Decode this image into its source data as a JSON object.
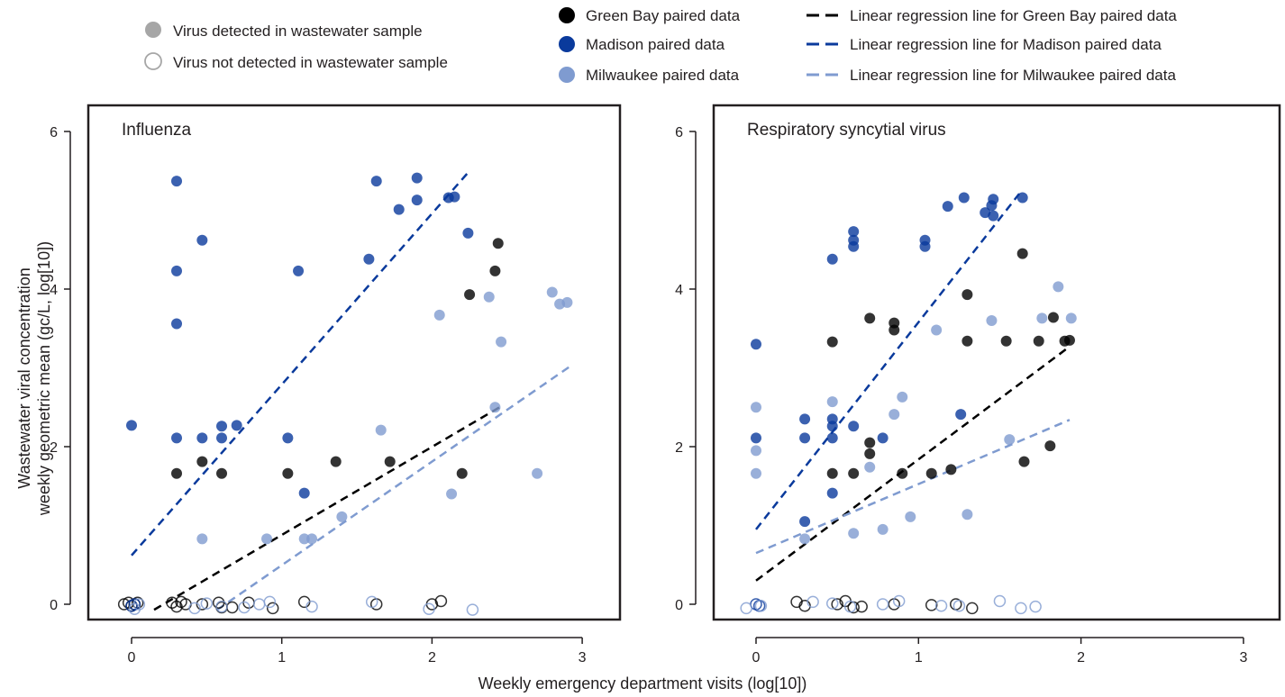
{
  "legend": {
    "detected": "Virus detected in wastewater sample",
    "not_detected": "Virus not detected in wastewater sample",
    "series_labels": [
      "Green Bay paired data",
      "Madison paired data",
      "Milwaukee paired data"
    ],
    "regression_labels": [
      "Linear regression line for Green Bay paired data",
      "Linear regression line for Madison paired data",
      "Linear regression line for Milwaukee paired data"
    ]
  },
  "colors": {
    "green_bay": "#000000",
    "madison": "#0a3a9c",
    "milwaukee": "#7f9bd0",
    "axis": "#231f20"
  },
  "shared_xlabel": "Weekly emergency department visits (log[10])",
  "shared_ylabel_line1": "Wastewater viral concentration",
  "shared_ylabel_line2": "weekly geometric mean (gc/L, log[10])",
  "chart_data": [
    {
      "type": "scatter",
      "title": "Influenza",
      "xlabel": "Weekly emergency department visits (log[10])",
      "ylabel": "Wastewater viral concentration weekly geometric mean (gc/L, log[10])",
      "xlim": [
        -0.2,
        3.25
      ],
      "ylim": [
        -0.2,
        6.2
      ],
      "xticks": [
        0,
        1,
        2,
        3
      ],
      "yticks": [
        0,
        2,
        4,
        6
      ],
      "series": [
        {
          "name": "Green Bay paired data",
          "color": "#000000",
          "detected": [
            [
              0.3,
              1.66
            ],
            [
              0.47,
              1.81
            ],
            [
              0.6,
              1.66
            ],
            [
              1.04,
              1.66
            ],
            [
              1.36,
              1.81
            ],
            [
              1.72,
              1.81
            ],
            [
              2.2,
              1.66
            ],
            [
              2.25,
              3.93
            ],
            [
              2.42,
              4.23
            ],
            [
              2.44,
              4.58
            ]
          ],
          "not_detected": [
            [
              -0.05,
              0.0
            ],
            [
              -0.02,
              0.02
            ],
            [
              0.0,
              -0.02
            ],
            [
              0.02,
              0.0
            ],
            [
              0.04,
              0.02
            ],
            [
              0.27,
              0.02
            ],
            [
              0.3,
              -0.03
            ],
            [
              0.33,
              0.03
            ],
            [
              0.36,
              0.0
            ],
            [
              0.47,
              0.0
            ],
            [
              0.58,
              0.02
            ],
            [
              0.6,
              -0.04
            ],
            [
              0.67,
              -0.04
            ],
            [
              0.78,
              0.02
            ],
            [
              0.94,
              -0.05
            ],
            [
              1.15,
              0.03
            ],
            [
              1.63,
              0.0
            ],
            [
              2.0,
              0.0
            ],
            [
              2.06,
              0.04
            ]
          ],
          "regression": [
            [
              0.15,
              -0.07
            ],
            [
              2.45,
              2.5
            ]
          ]
        },
        {
          "name": "Madison paired data",
          "color": "#0a3a9c",
          "detected": [
            [
              0.0,
              2.27
            ],
            [
              0.3,
              5.37
            ],
            [
              0.3,
              4.23
            ],
            [
              0.3,
              3.56
            ],
            [
              0.3,
              2.11
            ],
            [
              0.47,
              4.62
            ],
            [
              0.47,
              2.11
            ],
            [
              0.6,
              2.26
            ],
            [
              0.6,
              2.11
            ],
            [
              0.7,
              2.27
            ],
            [
              1.04,
              2.11
            ],
            [
              1.11,
              4.23
            ],
            [
              1.15,
              1.41
            ],
            [
              1.58,
              4.38
            ],
            [
              1.63,
              5.37
            ],
            [
              1.78,
              5.01
            ],
            [
              1.9,
              5.41
            ],
            [
              1.9,
              5.13
            ],
            [
              2.11,
              5.16
            ],
            [
              2.15,
              5.17
            ],
            [
              2.24,
              4.71
            ]
          ],
          "not_detected": [
            [
              0.0,
              -0.02
            ],
            [
              0.02,
              0.0
            ]
          ],
          "regression": [
            [
              0.0,
              0.62
            ],
            [
              2.25,
              5.5
            ]
          ]
        },
        {
          "name": "Milwaukee paired data",
          "color": "#7f9bd0",
          "detected": [
            [
              0.47,
              0.83
            ],
            [
              0.9,
              0.83
            ],
            [
              1.15,
              0.83
            ],
            [
              1.2,
              0.83
            ],
            [
              1.4,
              1.11
            ],
            [
              1.66,
              2.21
            ],
            [
              2.05,
              3.67
            ],
            [
              2.13,
              1.4
            ],
            [
              2.38,
              3.9
            ],
            [
              2.42,
              2.5
            ],
            [
              2.46,
              3.33
            ],
            [
              2.7,
              1.66
            ],
            [
              2.8,
              3.96
            ],
            [
              2.85,
              3.81
            ],
            [
              2.9,
              3.83
            ]
          ],
          "not_detected": [
            [
              0.02,
              -0.06
            ],
            [
              0.05,
              0.0
            ],
            [
              0.42,
              -0.05
            ],
            [
              0.5,
              0.01
            ],
            [
              0.6,
              -0.03
            ],
            [
              0.75,
              -0.04
            ],
            [
              0.85,
              0.0
            ],
            [
              0.92,
              0.03
            ],
            [
              1.2,
              -0.03
            ],
            [
              1.6,
              0.03
            ],
            [
              1.98,
              -0.06
            ],
            [
              2.27,
              -0.07
            ]
          ],
          "regression": [
            [
              0.57,
              -0.07
            ],
            [
              2.92,
              3.02
            ]
          ]
        }
      ]
    },
    {
      "type": "scatter",
      "title": "Respiratory syncytial virus",
      "xlabel": "Weekly emergency department visits (log[10])",
      "ylabel": "Wastewater viral concentration weekly geometric mean (gc/L, log[10])",
      "xlim": [
        -0.25,
        3.25
      ],
      "ylim": [
        -0.2,
        6.2
      ],
      "xticks": [
        0,
        1,
        2,
        3
      ],
      "yticks": [
        0,
        2,
        4,
        6
      ],
      "series": [
        {
          "name": "Green Bay paired data",
          "color": "#000000",
          "detected": [
            [
              0.47,
              3.33
            ],
            [
              0.47,
              1.66
            ],
            [
              0.6,
              1.66
            ],
            [
              0.7,
              3.63
            ],
            [
              0.7,
              2.05
            ],
            [
              0.7,
              1.91
            ],
            [
              0.85,
              3.57
            ],
            [
              0.85,
              3.48
            ],
            [
              0.9,
              1.66
            ],
            [
              1.08,
              1.66
            ],
            [
              1.2,
              1.71
            ],
            [
              1.3,
              3.93
            ],
            [
              1.3,
              3.34
            ],
            [
              1.54,
              3.34
            ],
            [
              1.64,
              4.45
            ],
            [
              1.65,
              1.81
            ],
            [
              1.74,
              3.34
            ],
            [
              1.81,
              2.01
            ],
            [
              1.83,
              3.64
            ],
            [
              1.9,
              3.34
            ],
            [
              1.93,
              3.35
            ]
          ],
          "not_detected": [
            [
              0.25,
              0.03
            ],
            [
              0.3,
              -0.02
            ],
            [
              0.5,
              0.0
            ],
            [
              0.55,
              0.04
            ],
            [
              0.6,
              -0.04
            ],
            [
              0.65,
              -0.03
            ],
            [
              0.85,
              0.0
            ],
            [
              1.08,
              -0.01
            ],
            [
              1.23,
              0.0
            ],
            [
              1.33,
              -0.05
            ]
          ],
          "regression": [
            [
              0.0,
              0.3
            ],
            [
              1.93,
              3.27
            ]
          ]
        },
        {
          "name": "Madison paired data",
          "color": "#0a3a9c",
          "detected": [
            [
              0.0,
              3.3
            ],
            [
              0.0,
              2.11
            ],
            [
              0.3,
              2.35
            ],
            [
              0.3,
              2.11
            ],
            [
              0.3,
              1.05
            ],
            [
              0.47,
              4.38
            ],
            [
              0.47,
              2.35
            ],
            [
              0.47,
              2.26
            ],
            [
              0.47,
              2.11
            ],
            [
              0.47,
              1.41
            ],
            [
              0.6,
              4.73
            ],
            [
              0.6,
              4.62
            ],
            [
              0.6,
              4.54
            ],
            [
              0.6,
              2.26
            ],
            [
              0.78,
              2.11
            ],
            [
              1.04,
              4.62
            ],
            [
              1.04,
              4.54
            ],
            [
              1.18,
              5.05
            ],
            [
              1.26,
              2.41
            ],
            [
              1.28,
              5.16
            ],
            [
              1.41,
              4.97
            ],
            [
              1.45,
              5.06
            ],
            [
              1.46,
              5.14
            ],
            [
              1.46,
              4.93
            ],
            [
              1.64,
              5.16
            ]
          ],
          "not_detected": [
            [
              0.0,
              0.0
            ],
            [
              0.02,
              -0.02
            ]
          ],
          "regression": [
            [
              0.0,
              0.95
            ],
            [
              1.62,
              5.21
            ]
          ]
        },
        {
          "name": "Milwaukee paired data",
          "color": "#7f9bd0",
          "detected": [
            [
              0.0,
              2.5
            ],
            [
              0.0,
              1.95
            ],
            [
              0.0,
              1.66
            ],
            [
              0.3,
              0.83
            ],
            [
              0.47,
              2.57
            ],
            [
              0.6,
              0.9
            ],
            [
              0.7,
              1.74
            ],
            [
              0.78,
              0.95
            ],
            [
              0.85,
              2.41
            ],
            [
              0.9,
              2.63
            ],
            [
              0.95,
              1.11
            ],
            [
              1.11,
              3.48
            ],
            [
              1.3,
              1.14
            ],
            [
              1.45,
              3.6
            ],
            [
              1.56,
              2.09
            ],
            [
              1.76,
              3.63
            ],
            [
              1.86,
              4.03
            ],
            [
              1.94,
              3.63
            ]
          ],
          "not_detected": [
            [
              -0.06,
              -0.05
            ],
            [
              0.03,
              -0.02
            ],
            [
              0.35,
              0.03
            ],
            [
              0.47,
              0.01
            ],
            [
              0.58,
              -0.03
            ],
            [
              0.78,
              0.0
            ],
            [
              0.88,
              0.04
            ],
            [
              1.14,
              -0.02
            ],
            [
              1.25,
              -0.02
            ],
            [
              1.5,
              0.04
            ],
            [
              1.63,
              -0.05
            ],
            [
              1.72,
              -0.03
            ]
          ],
          "regression": [
            [
              0.0,
              0.65
            ],
            [
              1.93,
              2.34
            ]
          ]
        }
      ]
    }
  ]
}
